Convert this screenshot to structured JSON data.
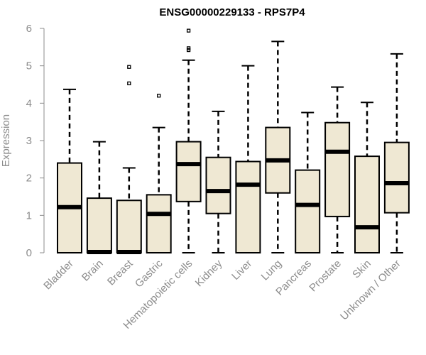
{
  "chart_data": {
    "type": "box",
    "title": "ENSG00000229133 - RPS7P4",
    "xlabel": "",
    "ylabel": "Expression",
    "ylim": [
      0,
      6
    ],
    "yticks": [
      "0",
      "1",
      "2",
      "3",
      "4",
      "5",
      "6"
    ],
    "grid": false,
    "legend": "none",
    "colors": {
      "box_fill": "#efe8d3",
      "stroke": "#000000",
      "axis": "#8c8c8c"
    },
    "categories": [
      "Bladder",
      "Brain",
      "Breast",
      "Gastric",
      "Hematopoietic cells",
      "Kidney",
      "Liver",
      "Lung",
      "Pancreas",
      "Prostate",
      "Skin",
      "Unknown / Other"
    ],
    "boxes": [
      {
        "min": 0,
        "q1": 0,
        "median": 1.22,
        "q3": 2.4,
        "max": 4.37,
        "outliers": []
      },
      {
        "min": 0,
        "q1": 0,
        "median": 0.02,
        "q3": 1.46,
        "max": 2.97,
        "outliers": []
      },
      {
        "min": 0,
        "q1": 0,
        "median": 0.02,
        "q3": 1.4,
        "max": 2.27,
        "outliers": [
          4.53,
          4.97
        ]
      },
      {
        "min": 0,
        "q1": 0,
        "median": 1.04,
        "q3": 1.55,
        "max": 3.35,
        "outliers": [
          4.2
        ]
      },
      {
        "min": 0,
        "q1": 1.37,
        "median": 2.37,
        "q3": 2.97,
        "max": 5.15,
        "outliers": [
          5.42,
          5.47,
          5.94
        ]
      },
      {
        "min": 0,
        "q1": 1.05,
        "median": 1.65,
        "q3": 2.55,
        "max": 3.78,
        "outliers": []
      },
      {
        "min": 0,
        "q1": 0,
        "median": 1.82,
        "q3": 2.44,
        "max": 5.0,
        "outliers": []
      },
      {
        "min": 0,
        "q1": 1.6,
        "median": 2.47,
        "q3": 3.35,
        "max": 5.65,
        "outliers": []
      },
      {
        "min": 0,
        "q1": 0,
        "median": 1.28,
        "q3": 2.21,
        "max": 3.75,
        "outliers": []
      },
      {
        "min": 0,
        "q1": 0.97,
        "median": 2.7,
        "q3": 3.48,
        "max": 4.43,
        "outliers": []
      },
      {
        "min": 0,
        "q1": 0,
        "median": 0.68,
        "q3": 2.58,
        "max": 4.02,
        "outliers": []
      },
      {
        "min": 0,
        "q1": 1.07,
        "median": 1.86,
        "q3": 2.95,
        "max": 5.32,
        "outliers": []
      }
    ]
  }
}
